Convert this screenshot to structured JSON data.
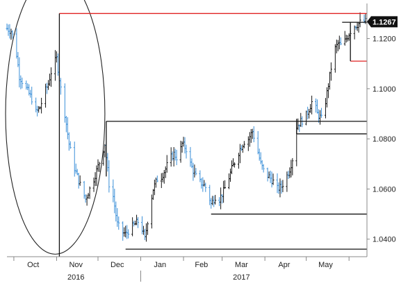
{
  "chart_data": {
    "type": "line",
    "style": "ohlc-bars",
    "y_axis": {
      "position": "right",
      "ylim": [
        1.033,
        1.134
      ],
      "ticks": [
        1.04,
        1.06,
        1.08,
        1.1,
        1.12
      ],
      "tick_labels": [
        "1.0400",
        "1.0600",
        "1.0800",
        "1.1000",
        "1.1200"
      ]
    },
    "last_price": {
      "value": 1.1267,
      "label": "1.1267"
    },
    "x_axis": {
      "start": "2016-09-26",
      "end": "2017-06-14",
      "months": [
        {
          "label": "Oct",
          "date": "2016-10-15"
        },
        {
          "label": "Nov",
          "date": "2016-11-15"
        },
        {
          "label": "Dec",
          "date": "2016-12-15"
        },
        {
          "label": "Jan",
          "date": "2017-01-15"
        },
        {
          "label": "Feb",
          "date": "2017-02-14"
        },
        {
          "label": "Mar",
          "date": "2017-03-15"
        },
        {
          "label": "Apr",
          "date": "2017-04-15"
        },
        {
          "label": "May",
          "date": "2017-05-15"
        }
      ],
      "month_ticks": [
        "2016-10-01",
        "2016-11-01",
        "2016-12-01",
        "2017-01-01",
        "2017-02-01",
        "2017-03-01",
        "2017-04-01",
        "2017-05-01",
        "2017-06-01"
      ],
      "years": [
        {
          "label": "2016",
          "date": "2016-11-15"
        },
        {
          "label": "2017",
          "date": "2017-03-15"
        }
      ],
      "year_separator": "2017-01-01"
    },
    "price_path": [
      [
        "2016-09-26",
        1.124
      ],
      [
        "2016-09-29",
        1.123
      ],
      [
        "2016-10-02",
        1.118
      ],
      [
        "2016-10-05",
        1.105
      ],
      [
        "2016-10-08",
        1.102
      ],
      [
        "2016-10-11",
        1.099
      ],
      [
        "2016-10-14",
        1.096
      ],
      [
        "2016-10-17",
        1.0905
      ],
      [
        "2016-10-20",
        1.0925
      ],
      [
        "2016-10-23",
        1.098
      ],
      [
        "2016-10-26",
        1.102
      ],
      [
        "2016-10-29",
        1.109
      ],
      [
        "2016-11-01",
        1.112
      ],
      [
        "2016-11-04",
        1.1
      ],
      [
        "2016-11-07",
        1.09
      ],
      [
        "2016-11-10",
        1.078
      ],
      [
        "2016-11-13",
        1.07
      ],
      [
        "2016-11-16",
        1.065
      ],
      [
        "2016-11-19",
        1.06
      ],
      [
        "2016-11-22",
        1.056
      ],
      [
        "2016-11-25",
        1.06
      ],
      [
        "2016-11-28",
        1.064
      ],
      [
        "2016-12-01",
        1.069
      ],
      [
        "2016-12-04",
        1.074
      ],
      [
        "2016-12-06",
        1.078
      ],
      [
        "2016-12-09",
        1.062
      ],
      [
        "2016-12-12",
        1.057
      ],
      [
        "2016-12-15",
        1.046
      ],
      [
        "2016-12-18",
        1.043
      ],
      [
        "2016-12-21",
        1.042
      ],
      [
        "2016-12-24",
        1.044
      ],
      [
        "2016-12-27",
        1.0455
      ],
      [
        "2016-12-30",
        1.047
      ],
      [
        "2017-01-02",
        1.044
      ],
      [
        "2017-01-04",
        1.04
      ],
      [
        "2017-01-07",
        1.051
      ],
      [
        "2017-01-10",
        1.06
      ],
      [
        "2017-01-13",
        1.064
      ],
      [
        "2017-01-16",
        1.065
      ],
      [
        "2017-01-19",
        1.068
      ],
      [
        "2017-01-22",
        1.072
      ],
      [
        "2017-01-25",
        1.074
      ],
      [
        "2017-01-28",
        1.072
      ],
      [
        "2017-01-31",
        1.078
      ],
      [
        "2017-02-03",
        1.076
      ],
      [
        "2017-02-06",
        1.07
      ],
      [
        "2017-02-09",
        1.066
      ],
      [
        "2017-02-12",
        1.063
      ],
      [
        "2017-02-15",
        1.062
      ],
      [
        "2017-02-18",
        1.06
      ],
      [
        "2017-02-21",
        1.054
      ],
      [
        "2017-02-24",
        1.057
      ],
      [
        "2017-02-27",
        1.056
      ],
      [
        "2017-03-02",
        1.059
      ],
      [
        "2017-03-05",
        1.063
      ],
      [
        "2017-03-08",
        1.068
      ],
      [
        "2017-03-11",
        1.072
      ],
      [
        "2017-03-14",
        1.076
      ],
      [
        "2017-03-17",
        1.079
      ],
      [
        "2017-03-20",
        1.08
      ],
      [
        "2017-03-23",
        1.083
      ],
      [
        "2017-03-26",
        1.077
      ],
      [
        "2017-03-29",
        1.07
      ],
      [
        "2017-04-01",
        1.066
      ],
      [
        "2017-04-04",
        1.065
      ],
      [
        "2017-04-07",
        1.063
      ],
      [
        "2017-04-10",
        1.06
      ],
      [
        "2017-04-13",
        1.061
      ],
      [
        "2017-04-16",
        1.064
      ],
      [
        "2017-04-19",
        1.068
      ],
      [
        "2017-04-21",
        1.072
      ],
      [
        "2017-04-24",
        1.085
      ],
      [
        "2017-04-27",
        1.087
      ],
      [
        "2017-04-30",
        1.088
      ],
      [
        "2017-05-03",
        1.092
      ],
      [
        "2017-05-06",
        1.096
      ],
      [
        "2017-05-09",
        1.09
      ],
      [
        "2017-05-12",
        1.088
      ],
      [
        "2017-05-15",
        1.095
      ],
      [
        "2017-05-18",
        1.105
      ],
      [
        "2017-05-21",
        1.115
      ],
      [
        "2017-05-24",
        1.118
      ],
      [
        "2017-05-27",
        1.117
      ],
      [
        "2017-05-30",
        1.12
      ],
      [
        "2017-06-02",
        1.123
      ],
      [
        "2017-06-05",
        1.125
      ],
      [
        "2017-06-08",
        1.126
      ],
      [
        "2017-06-11",
        1.127
      ],
      [
        "2017-06-14",
        1.1267
      ]
    ],
    "annotations": {
      "circle": {
        "center": [
          "2016-10-31",
          1.09
        ],
        "radius_days": 36,
        "radius_y": 0.056,
        "color": "#222222"
      },
      "lines": [
        {
          "name": "red-resistance",
          "color": "#e02020",
          "from": [
            "2016-11-03",
            1.13
          ],
          "to": [
            "2017-06-14",
            1.13
          ]
        },
        {
          "name": "vertical-nov",
          "color": "#111111",
          "from": [
            "2016-11-03",
            1.033
          ],
          "to": [
            "2016-11-03",
            1.13
          ]
        },
        {
          "name": "level-1-0870",
          "color": "#111111",
          "from": [
            "2016-12-07",
            1.087
          ],
          "to": [
            "2017-06-14",
            1.087
          ]
        },
        {
          "name": "vertical-dec",
          "color": "#111111",
          "from": [
            "2016-12-07",
            1.087
          ],
          "to": [
            "2016-12-07",
            1.065
          ]
        },
        {
          "name": "level-1-0820",
          "color": "#111111",
          "from": [
            "2017-04-24",
            1.082
          ],
          "to": [
            "2017-06-14",
            1.082
          ]
        },
        {
          "name": "vertical-apr",
          "color": "#111111",
          "from": [
            "2017-04-24",
            1.082
          ],
          "to": [
            "2017-04-24",
            1.088
          ]
        },
        {
          "name": "level-1-0500",
          "color": "#111111",
          "from": [
            "2017-02-21",
            1.05
          ],
          "to": [
            "2017-06-14",
            1.05
          ]
        },
        {
          "name": "level-1-0360",
          "color": "#111111",
          "from": [
            "2016-12-21",
            1.036
          ],
          "to": [
            "2017-06-14",
            1.036
          ]
        },
        {
          "name": "level-1-1265",
          "color": "#111111",
          "from": [
            "2017-05-27",
            1.1265
          ],
          "to": [
            "2017-06-14",
            1.1265
          ]
        },
        {
          "name": "red-support-small",
          "color": "#e02020",
          "from": [
            "2017-06-02",
            1.111
          ],
          "to": [
            "2017-06-14",
            1.111
          ]
        },
        {
          "name": "vertical-may",
          "color": "#111111",
          "from": [
            "2017-06-02",
            1.111
          ],
          "to": [
            "2017-06-02",
            1.1265
          ]
        }
      ]
    },
    "colors": {
      "up_bar": "#111111",
      "down_bar": "#3a8fd8",
      "grid": "#999999"
    }
  }
}
